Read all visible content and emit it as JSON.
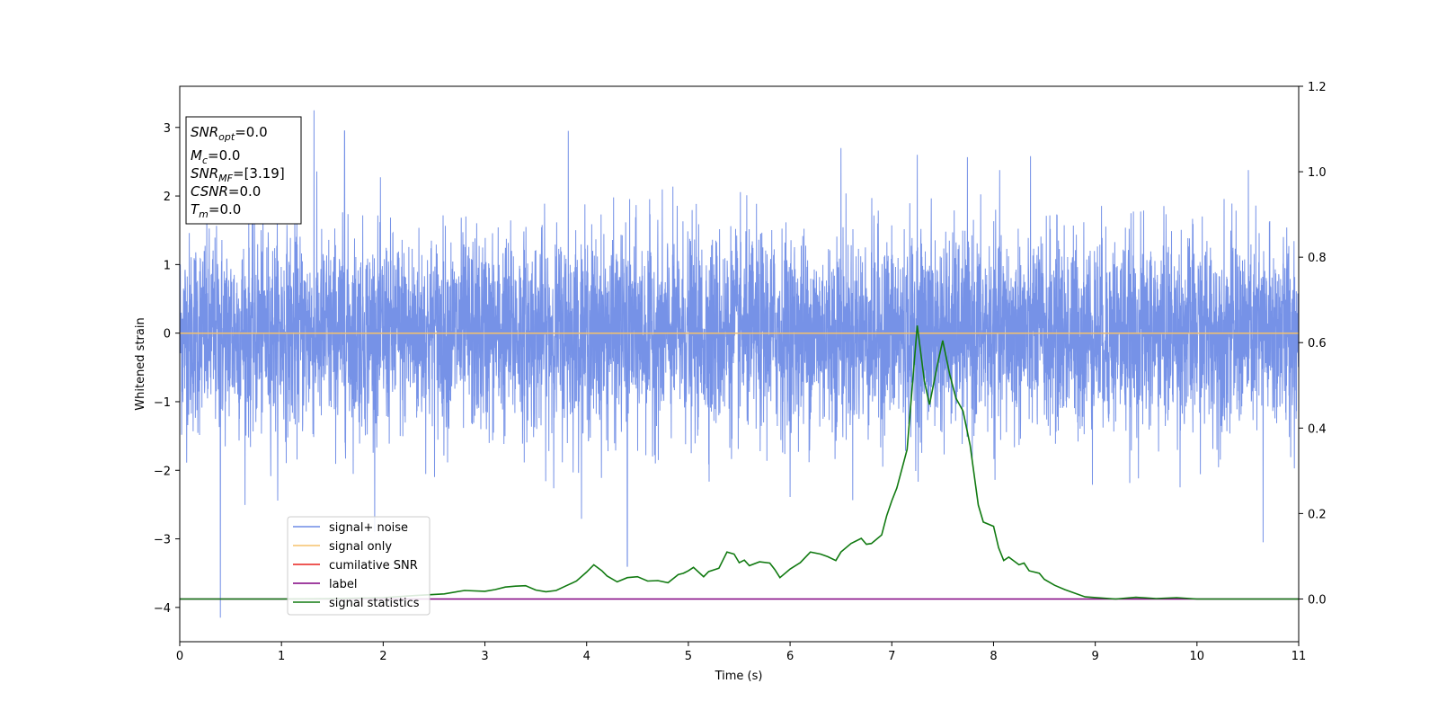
{
  "chart_data": {
    "type": "line",
    "xlabel": "Time (s)",
    "ylabel": "Whitened strain",
    "xlim": [
      0,
      11
    ],
    "ylim": [
      -4.5,
      3.6
    ],
    "y2lim": [
      -0.1,
      1.2
    ],
    "x_ticks": [
      "0",
      "1",
      "2",
      "3",
      "4",
      "5",
      "6",
      "7",
      "8",
      "9",
      "10",
      "11"
    ],
    "y_ticks": [
      "3",
      "2",
      "1",
      "0",
      "−1",
      "−2",
      "−3",
      "−4"
    ],
    "y2_ticks": [
      "1.2",
      "1.0",
      "0.8",
      "0.6",
      "0.4",
      "0.2",
      "0.0"
    ],
    "grid": false,
    "legend_position": "lower-left",
    "info_box": {
      "snr_opt": {
        "main": "SNR",
        "sub": "opt",
        "value": "=0.0"
      },
      "mc": {
        "main": "M",
        "sub": "c",
        "value": "=0.0"
      },
      "snr_mf": {
        "main": "SNR",
        "sub": "MF",
        "value": "=[3.19]"
      },
      "csnr": {
        "main": "CSNR",
        "value": "=0.0"
      },
      "tm": {
        "main": "T",
        "sub": "m",
        "value": "=0.0"
      }
    },
    "series": [
      {
        "name": "signal+ noise",
        "axis": "left",
        "color": "#6f8ce6",
        "kind": "whitened noise, approx. unit standard deviation over 0–11 s",
        "envelope_peaks": [
          {
            "x": 0.4,
            "y": -4.15
          },
          {
            "x": 1.32,
            "y": 3.25
          },
          {
            "x": 1.62,
            "y": 2.95
          },
          {
            "x": 3.82,
            "y": 2.95
          },
          {
            "x": 4.4,
            "y": -3.4
          },
          {
            "x": 6.5,
            "y": 2.7
          },
          {
            "x": 7.25,
            "y": 2.6
          },
          {
            "x": 10.65,
            "y": -3.05
          }
        ]
      },
      {
        "name": "signal only",
        "axis": "left",
        "color": "#f5c26b",
        "x": [
          0,
          11
        ],
        "y": [
          0,
          0
        ]
      },
      {
        "name": "cumilative SNR",
        "axis": "left",
        "color": "#e8211d",
        "x": [],
        "y": []
      },
      {
        "name": "label",
        "axis": "right",
        "color": "#800080",
        "x": [
          0,
          11
        ],
        "y": [
          0,
          0
        ]
      },
      {
        "name": "signal statistics",
        "axis": "right",
        "color": "#117a11",
        "x": [
          0,
          0.5,
          1,
          1.5,
          2,
          2.3,
          2.6,
          2.8,
          3.0,
          3.1,
          3.2,
          3.3,
          3.4,
          3.5,
          3.6,
          3.7,
          3.8,
          3.9,
          4.0,
          4.07,
          4.15,
          4.2,
          4.3,
          4.4,
          4.5,
          4.6,
          4.7,
          4.8,
          4.9,
          4.95,
          5.0,
          5.05,
          5.15,
          5.2,
          5.3,
          5.38,
          5.45,
          5.5,
          5.55,
          5.6,
          5.7,
          5.8,
          5.85,
          5.9,
          6.0,
          6.1,
          6.2,
          6.3,
          6.37,
          6.45,
          6.5,
          6.6,
          6.7,
          6.75,
          6.8,
          6.9,
          6.95,
          7.0,
          7.05,
          7.15,
          7.25,
          7.32,
          7.37,
          7.45,
          7.5,
          7.57,
          7.63,
          7.7,
          7.77,
          7.85,
          7.9,
          8.0,
          8.05,
          8.1,
          8.15,
          8.25,
          8.3,
          8.35,
          8.45,
          8.5,
          8.6,
          8.7,
          8.9,
          9.2,
          9.4,
          9.6,
          9.8,
          10.0,
          10.5,
          11.0
        ],
        "y": [
          0.0,
          0.0,
          0.0,
          0.001,
          0.003,
          0.008,
          0.012,
          0.02,
          0.018,
          0.022,
          0.028,
          0.03,
          0.031,
          0.021,
          0.017,
          0.02,
          0.031,
          0.042,
          0.063,
          0.08,
          0.066,
          0.054,
          0.04,
          0.05,
          0.052,
          0.042,
          0.043,
          0.038,
          0.057,
          0.06,
          0.066,
          0.074,
          0.052,
          0.064,
          0.072,
          0.11,
          0.105,
          0.085,
          0.091,
          0.078,
          0.087,
          0.084,
          0.069,
          0.05,
          0.07,
          0.085,
          0.11,
          0.105,
          0.099,
          0.09,
          0.11,
          0.13,
          0.142,
          0.128,
          0.13,
          0.15,
          0.195,
          0.23,
          0.26,
          0.35,
          0.64,
          0.51,
          0.455,
          0.55,
          0.605,
          0.525,
          0.47,
          0.44,
          0.36,
          0.22,
          0.18,
          0.17,
          0.12,
          0.09,
          0.098,
          0.08,
          0.084,
          0.066,
          0.06,
          0.046,
          0.032,
          0.022,
          0.005,
          0.0,
          0.004,
          0.001,
          0.003,
          0.0,
          0.0,
          0.0
        ]
      }
    ]
  }
}
